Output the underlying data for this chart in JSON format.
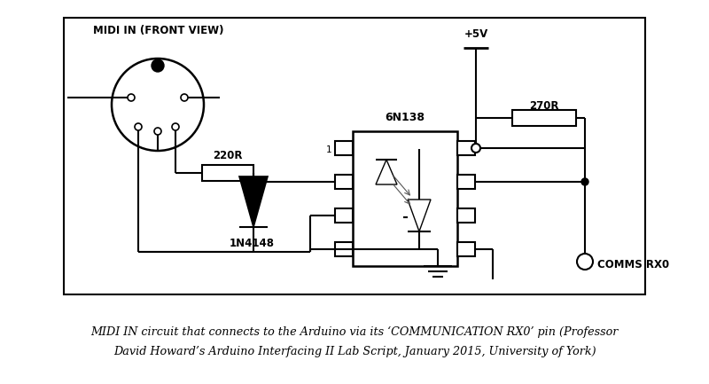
{
  "fig_width": 8.0,
  "fig_height": 4.33,
  "dpi": 100,
  "bg_color": "#ffffff",
  "line_color": "#000000",
  "caption_line1": "MIDI IN circuit that connects to the Arduino via its ‘COMMUNICATION RX0’ pin (Professor",
  "caption_line2": "David Howard’s Arduino Interfacing II Lab Script, January 2015, University of York)",
  "caption_fontsize": 9.2,
  "label_midi_in": "MIDI IN (FRONT VIEW)",
  "label_220r": "220R",
  "label_1n4148": "1N4148",
  "label_6n138": "6N138",
  "label_270r": "270R",
  "label_5v": "+5V",
  "label_comms": "COMMS RX0",
  "label_pin1": "1"
}
